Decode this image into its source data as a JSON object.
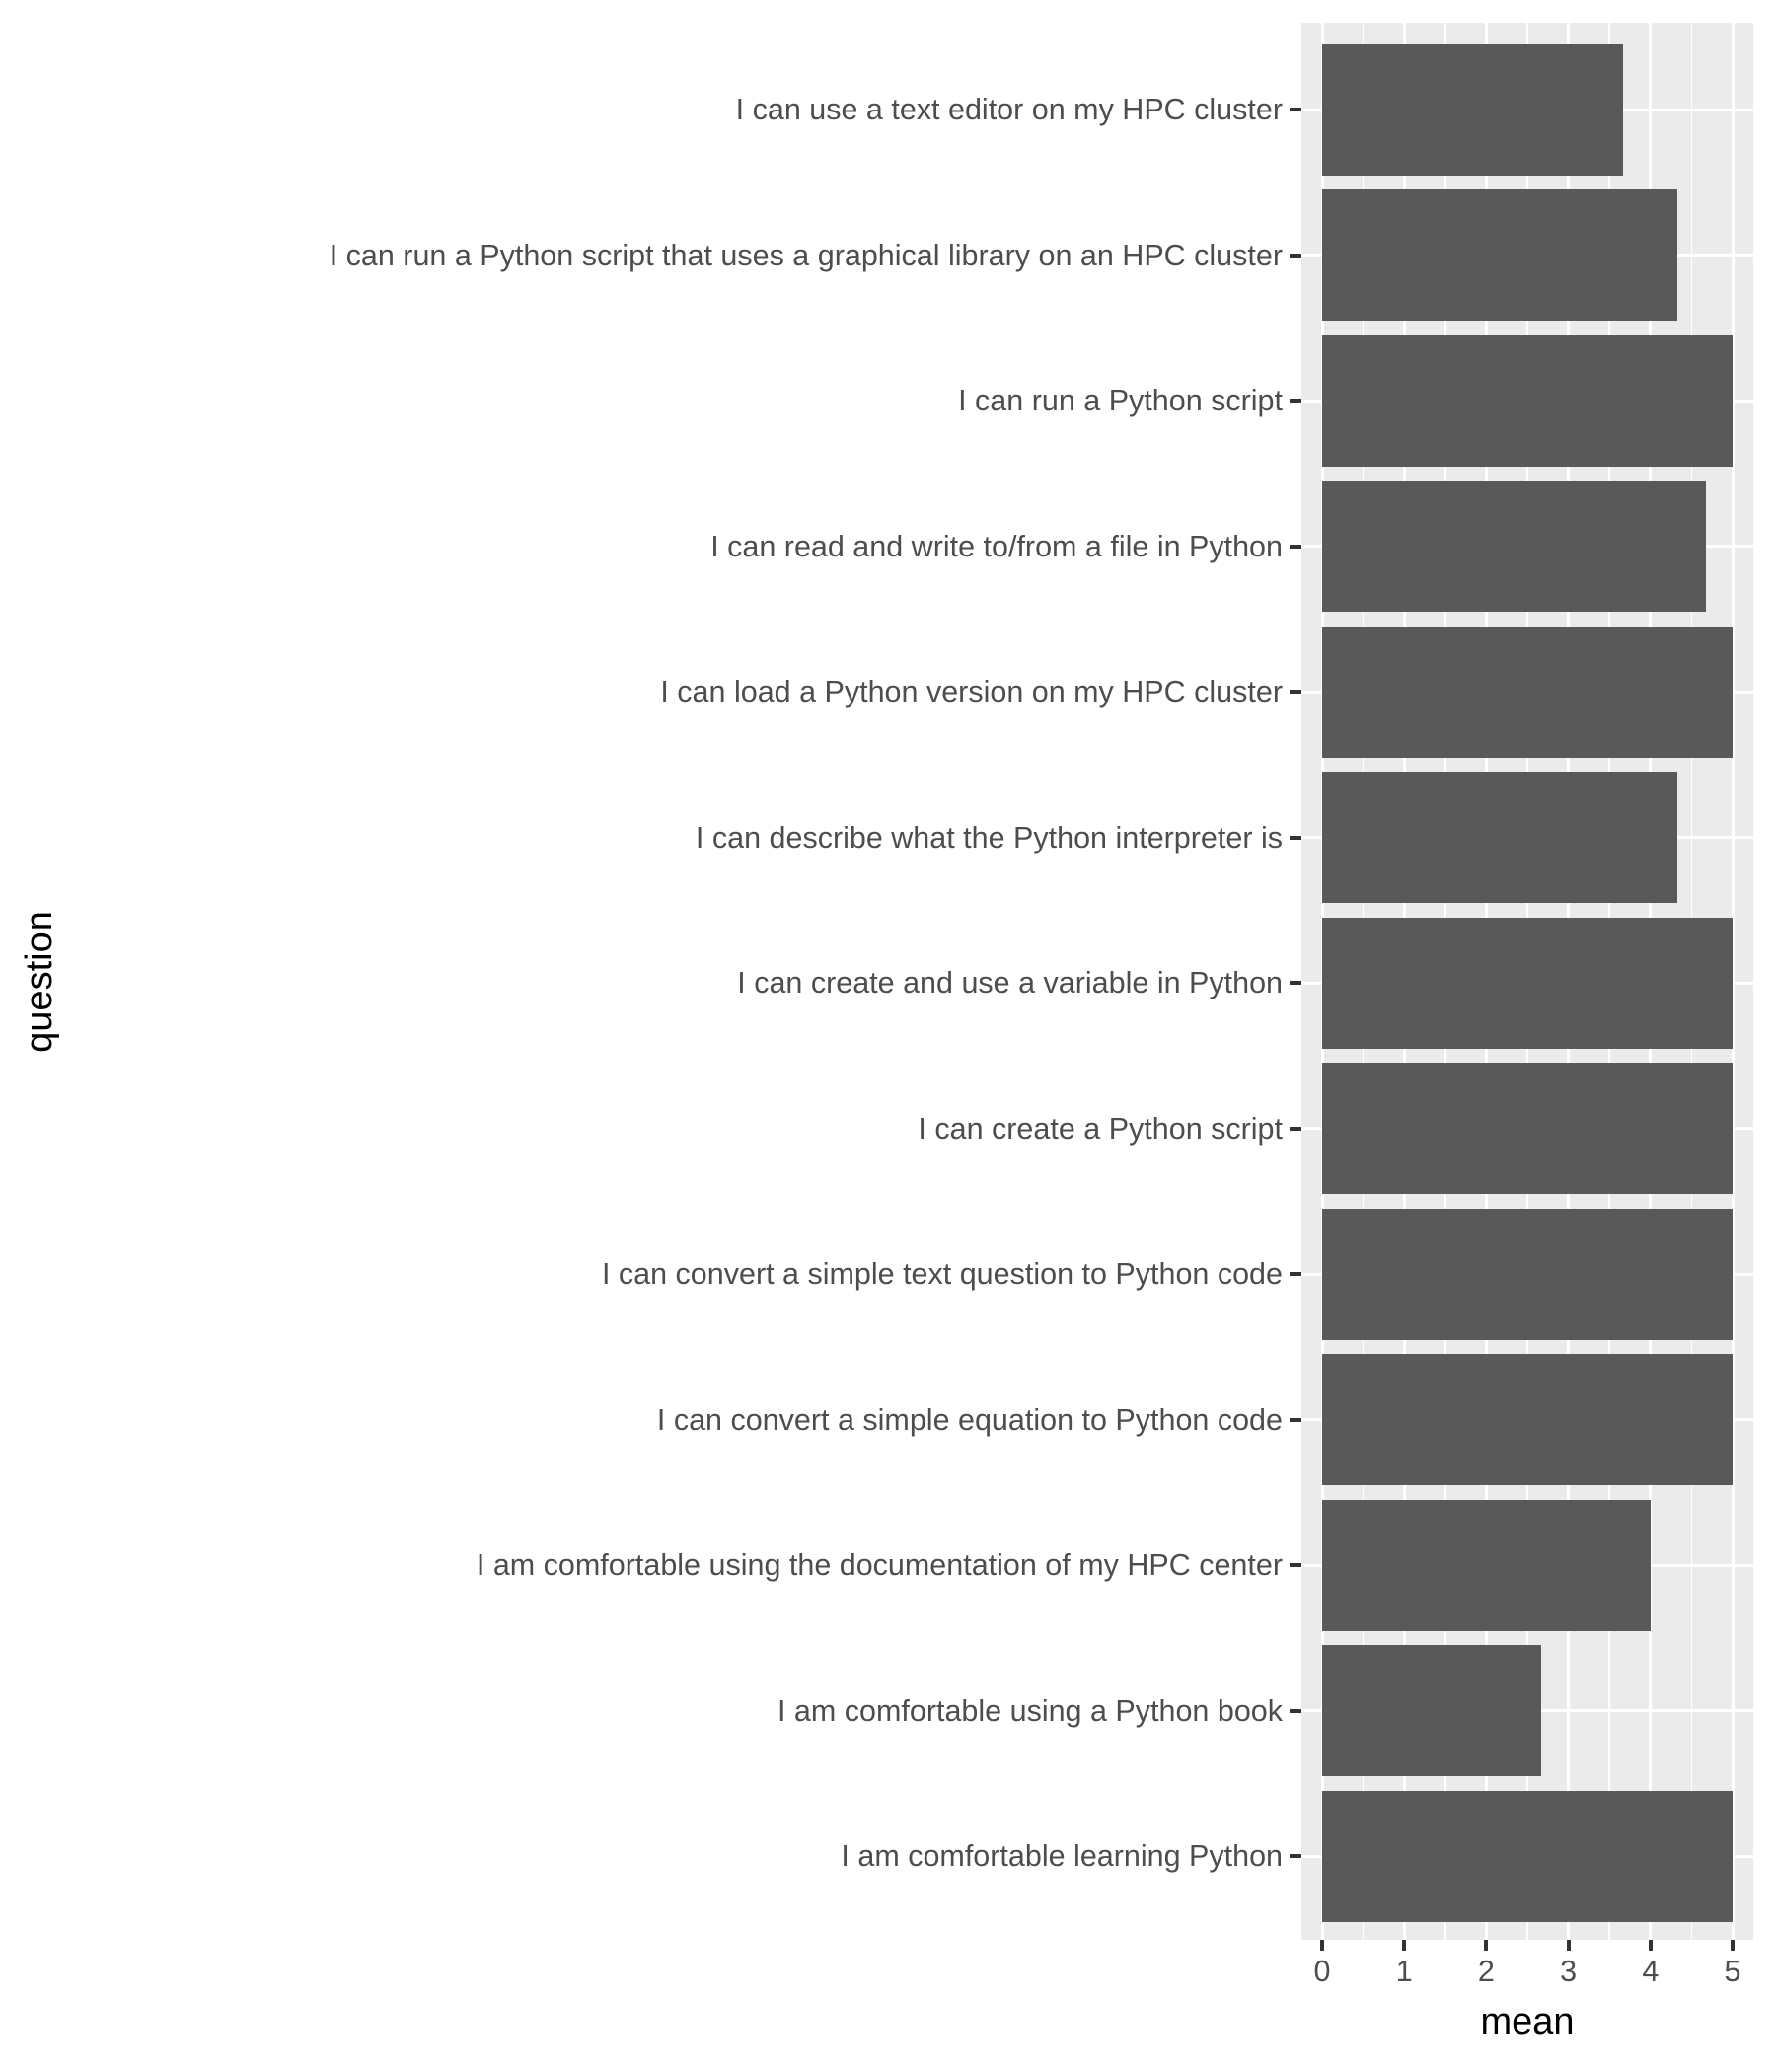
{
  "chart_data": {
    "type": "bar",
    "orientation": "horizontal",
    "title": "",
    "xlabel": "mean",
    "ylabel": "question",
    "xlim": [
      0,
      5
    ],
    "x_ticks": [
      "0",
      "1",
      "2",
      "3",
      "4",
      "5"
    ],
    "grid": true,
    "legend": null,
    "bar_color": "#595959",
    "panel_background": "#ebebeb",
    "categories": [
      "I can use a text editor on my HPC cluster",
      "I can run a Python script that uses a graphical library on an HPC cluster",
      "I can run a Python script",
      "I can read and write to/from a file in Python",
      "I can load a Python version on my HPC cluster",
      "I can describe what the Python interpreter is",
      "I can create and use a variable in Python",
      "I can create a Python script",
      "I can convert a simple text question to Python code",
      "I can convert a simple equation to Python code",
      "I am comfortable using the documentation of my HPC center",
      "I am comfortable using a Python book",
      "I am comfortable learning Python"
    ],
    "values": [
      3.67,
      4.33,
      5.0,
      4.67,
      5.0,
      4.33,
      5.0,
      5.0,
      5.0,
      5.0,
      4.0,
      2.67,
      5.0
    ]
  },
  "axes": {
    "x_title": "mean",
    "y_title": "question"
  }
}
